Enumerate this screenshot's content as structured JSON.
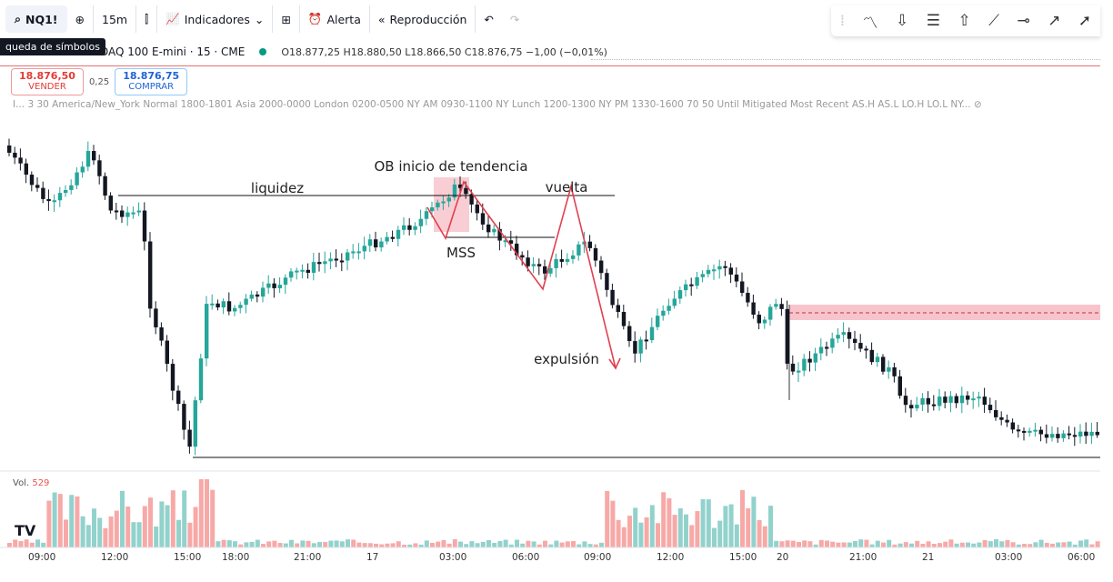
{
  "toolbar": {
    "symbol": "NQ1!",
    "interval": "15m",
    "indicators": "Indicadores",
    "alert": "Alerta",
    "replay": "Reproducción"
  },
  "tooltip": "queda de símbolos",
  "legend": {
    "title": "DAQ 100 E-mini · 15 · CME",
    "ohlc": "O18.877,25 H18.880,50 L18.866,50 C18.876,75 −1,00 (−0,01%)"
  },
  "trade": {
    "sell_price": "18.876,50",
    "sell": "VENDER",
    "spread": "0,25",
    "buy_price": "18.876,75",
    "buy": "COMPRAR"
  },
  "indicator_line": "I... 3 30 America/New_York Normal 1800-1801 Asia 2000-0000 London 0200-0500 NY AM 0930-1100 NY Lunch 1200-1300 NY PM 1330-1600 70 50 Until Mitigated Most Recent AS.H AS.L LO.H LO.L NY...",
  "annotations": {
    "liquidity": "liquidez",
    "ob": "OB inicio de tendencia",
    "mss": "MSS",
    "return": "vuelta",
    "expulsion": "expulsión"
  },
  "volume": {
    "label": "Vol.",
    "value": "529"
  },
  "time_axis": [
    "09:00",
    "12:00",
    "15:00",
    "18:00",
    "21:00",
    "17",
    "03:00",
    "06:00",
    "09:00",
    "12:00",
    "15:00",
    "20",
    "21:00",
    "21",
    "03:00",
    "06:00"
  ],
  "colors": {
    "up": "#26a69a",
    "down": "#131722",
    "vol_up": "#92d2cc",
    "vol_down": "#f7a9a7",
    "zone": "#f8c4cc",
    "draw": "#e04050"
  }
}
